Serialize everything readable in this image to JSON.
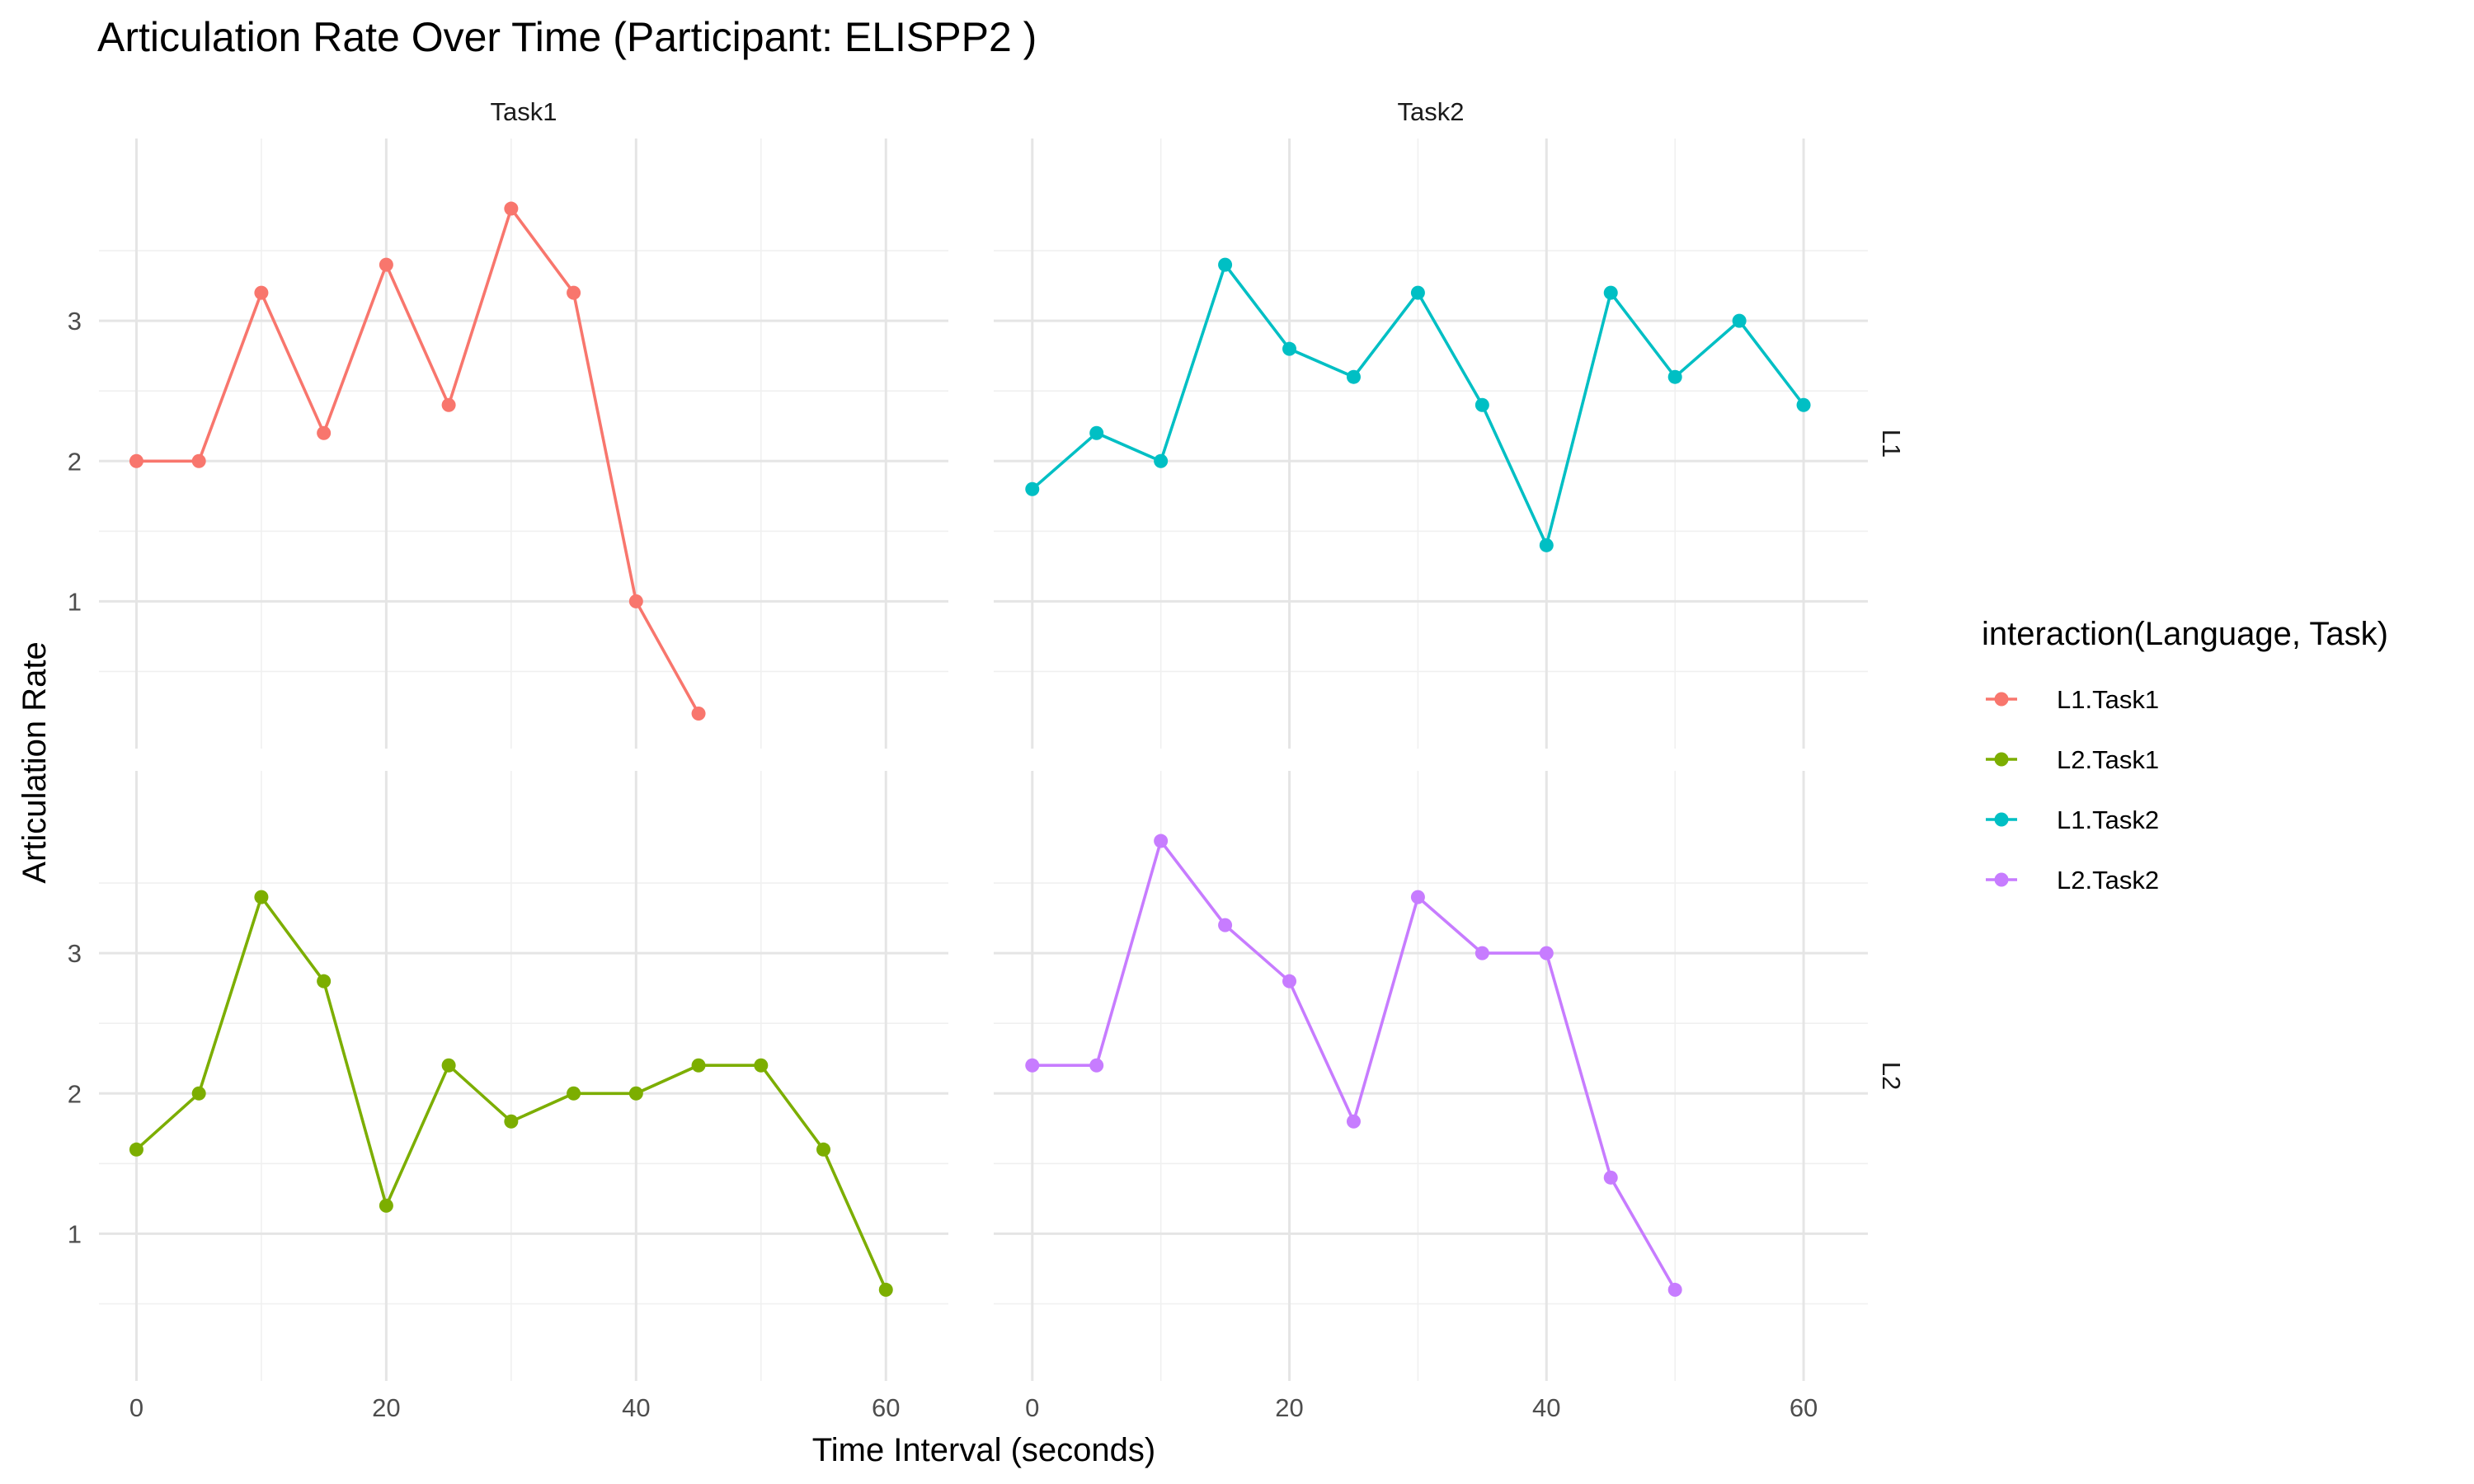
{
  "chart_data": {
    "type": "line",
    "title": "Articulation Rate Over Time (Participant: ELISPP2 )",
    "xlabel": "Time Interval (seconds)",
    "ylabel": "Articulation Rate",
    "xlim": [
      -3,
      65
    ],
    "ylim": [
      -0.05,
      4.3
    ],
    "x_ticks": [
      0,
      20,
      40,
      60
    ],
    "y_ticks": [
      1,
      2,
      3
    ],
    "grid": true,
    "facet_columns": [
      "Task1",
      "Task2"
    ],
    "facet_rows": [
      "L1",
      "L2"
    ],
    "legend": {
      "title": "interaction(Language, Task)",
      "placement": "right",
      "entries": [
        "L1.Task1",
        "L2.Task1",
        "L1.Task2",
        "L2.Task2"
      ]
    },
    "series": [
      {
        "name": "L1.Task1",
        "facet_row": "L1",
        "facet_col": "Task1",
        "color": "#F8766D",
        "x": [
          0,
          5,
          10,
          15,
          20,
          25,
          30,
          35,
          40,
          45
        ],
        "values": [
          2.0,
          2.0,
          3.2,
          2.2,
          3.4,
          2.4,
          3.8,
          3.2,
          1.0,
          0.2
        ]
      },
      {
        "name": "L2.Task1",
        "facet_row": "L2",
        "facet_col": "Task1",
        "color": "#7CAE00",
        "x": [
          0,
          5,
          10,
          15,
          20,
          25,
          30,
          35,
          40,
          45,
          50,
          55,
          60
        ],
        "values": [
          1.6,
          2.0,
          3.4,
          2.8,
          1.2,
          2.2,
          1.8,
          2.0,
          2.0,
          2.2,
          2.2,
          1.6,
          0.6
        ]
      },
      {
        "name": "L1.Task2",
        "facet_row": "L1",
        "facet_col": "Task2",
        "color": "#00BFC4",
        "x": [
          0,
          5,
          10,
          15,
          20,
          25,
          30,
          35,
          40,
          45,
          50,
          55,
          60
        ],
        "values": [
          1.8,
          2.2,
          2.0,
          3.4,
          2.8,
          2.6,
          3.2,
          2.4,
          1.4,
          3.2,
          2.6,
          3.0,
          2.4
        ]
      },
      {
        "name": "L2.Task2",
        "facet_row": "L2",
        "facet_col": "Task2",
        "color": "#C77CFF",
        "x": [
          0,
          5,
          10,
          15,
          20,
          25,
          30,
          35,
          40,
          45,
          50
        ],
        "values": [
          2.2,
          2.2,
          3.8,
          3.2,
          2.8,
          1.8,
          3.4,
          3.0,
          3.0,
          1.4,
          0.6
        ]
      }
    ]
  }
}
